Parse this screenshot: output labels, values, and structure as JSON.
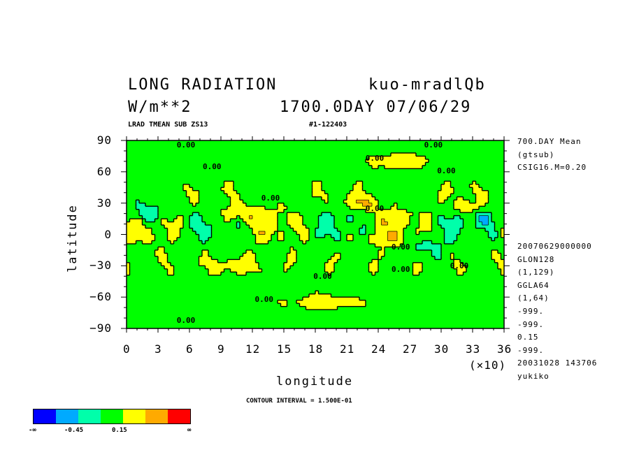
{
  "chart_data": {
    "type": "heatmap",
    "title": "LONG RADIATION",
    "experiment": "kuo-mradlQb",
    "units": "W/m**2",
    "time_label": "1700.0DAY 07/06/29",
    "subtitle_left": "LRAD TMEAN SUB ZS13",
    "subtitle_right": "#1-122403",
    "xlabel": "longitude",
    "ylabel": "latitude",
    "x_ticks": [
      "0",
      "3",
      "6",
      "9",
      "12",
      "15",
      "18",
      "21",
      "24",
      "27",
      "30",
      "33",
      "36"
    ],
    "x_multiplier": "(×10)",
    "y_ticks": [
      "90",
      "60",
      "30",
      "0",
      "−30",
      "−60",
      "−90"
    ],
    "xlim": [
      0,
      36
    ],
    "ylim": [
      -90,
      90
    ],
    "contour_interval": "CONTOUR INTERVAL = 1.500E-01",
    "contour_labels": [
      "0.00",
      "0.00",
      "0.00",
      "0.00",
      "0.00",
      "0.00",
      "0.00",
      "0.00",
      "0.00",
      "0.00",
      "0.00",
      "0.00",
      "0.00"
    ],
    "side_info_top": [
      "700.DAY Mean",
      "(gtsub)",
      "CSIG16.M=0.20"
    ],
    "side_info_bottom": [
      "20070629000000",
      "GLON128",
      "(1,129)",
      "GGLA64",
      "(1,64)",
      "-999.",
      "-999.",
      "0.15",
      "-999.",
      "20031028 143706",
      "yukiko"
    ],
    "colorbar": {
      "colors": [
        "#0000ff",
        "#00aaff",
        "#00ffaa",
        "#00ff00",
        "#ffff00",
        "#ffaa00",
        "#ff0000"
      ],
      "labels": [
        "-∞",
        "-0.45",
        "0.15",
        "∞"
      ],
      "levels": [
        -0.75,
        -0.45,
        -0.15,
        0.15,
        0.45,
        0.75
      ]
    }
  }
}
